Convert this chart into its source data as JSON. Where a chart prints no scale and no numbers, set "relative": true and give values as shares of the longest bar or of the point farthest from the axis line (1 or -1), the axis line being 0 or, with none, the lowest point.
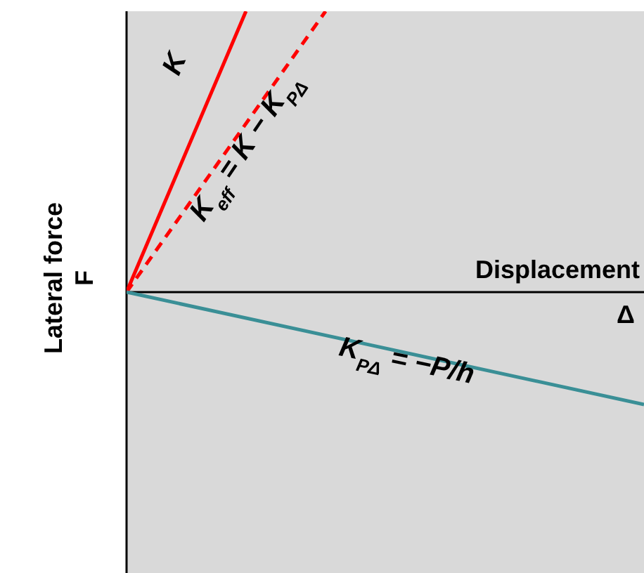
{
  "chart_data": {
    "type": "line",
    "relative": true,
    "xlabel": "Displacement",
    "ylabel": "Lateral force F",
    "annotations": [
      "Δ"
    ],
    "marker": "none",
    "categories": [
      null,
      null,
      null,
      null,
      null,
      null,
      null,
      null,
      null,
      null,
      null,
      null,
      null,
      null
    ],
    "series": [
      {
        "name": "K",
        "color": "#ff0000",
        "values": [
          0,
          null,
          null,
          1,
          null,
          null,
          null,
          null,
          null,
          null,
          null,
          null,
          null,
          null
        ],
        "line_style": "solid"
      },
      {
        "name": "K$_{eff}$ = K − K$_{PΔ}$",
        "color": "#ff0000",
        "values": [
          0,
          null,
          null,
          null,
          null,
          1,
          null,
          null,
          null,
          null,
          null,
          null,
          null,
          null
        ],
        "line_style": "dashed"
      },
      {
        "name": "K$_{PΔ}$ =  −P/h",
        "color": "#3a8f96",
        "values": [
          0,
          null,
          null,
          null,
          null,
          null,
          null,
          null,
          null,
          null,
          null,
          null,
          null,
          -0.4
        ],
        "line_style": "solid"
      }
    ]
  }
}
